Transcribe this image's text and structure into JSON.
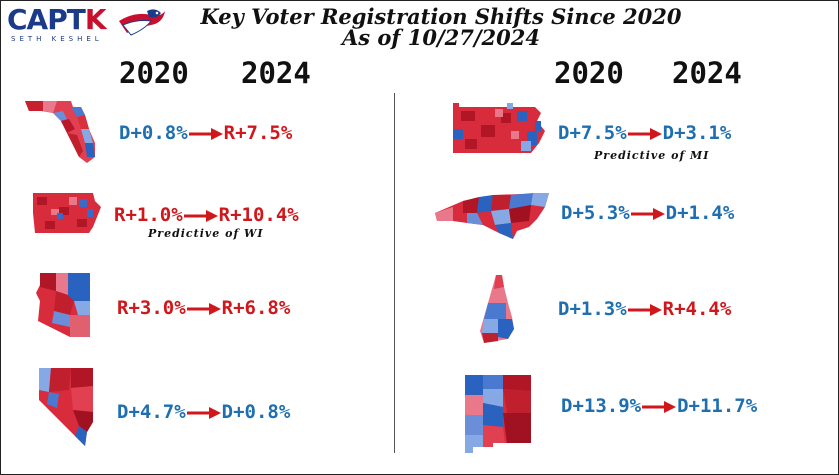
{
  "header": {
    "logo_main": "CAPTK",
    "logo_sub": "SETH KESHEL",
    "title_line1": "Key Voter Registration Shifts Since 2020",
    "title_line2": "As of 10/27/2024"
  },
  "columns": {
    "left": {
      "year_from": "2020",
      "year_to": "2024"
    },
    "right": {
      "year_from": "2020",
      "year_to": "2024"
    }
  },
  "states": [
    {
      "name": "Florida",
      "from": "D+0.8%",
      "to": "R+7.5%",
      "note": ""
    },
    {
      "name": "Iowa",
      "from": "R+1.0%",
      "to": "R+10.4%",
      "note": "Predictive of WI"
    },
    {
      "name": "Arizona",
      "from": "R+3.0%",
      "to": "R+6.8%",
      "note": ""
    },
    {
      "name": "Nevada",
      "from": "D+4.7%",
      "to": "D+0.8%",
      "note": ""
    },
    {
      "name": "Pennsylvania",
      "from": "D+7.5%",
      "to": "D+3.1%",
      "note": "Predictive of MI"
    },
    {
      "name": "North Carolina",
      "from": "D+5.3%",
      "to": "D+1.4%",
      "note": ""
    },
    {
      "name": "New Hampshire",
      "from": "D+1.3%",
      "to": "R+4.4%",
      "note": ""
    },
    {
      "name": "New Mexico",
      "from": "D+13.9%",
      "to": "D+11.7%",
      "note": ""
    }
  ],
  "colors": {
    "democrat": "#1f6fb0",
    "republican": "#d0171b",
    "arrow": "#d0171b"
  },
  "icons": [
    "arrow-right-icon",
    "eagle-flag-icon"
  ]
}
